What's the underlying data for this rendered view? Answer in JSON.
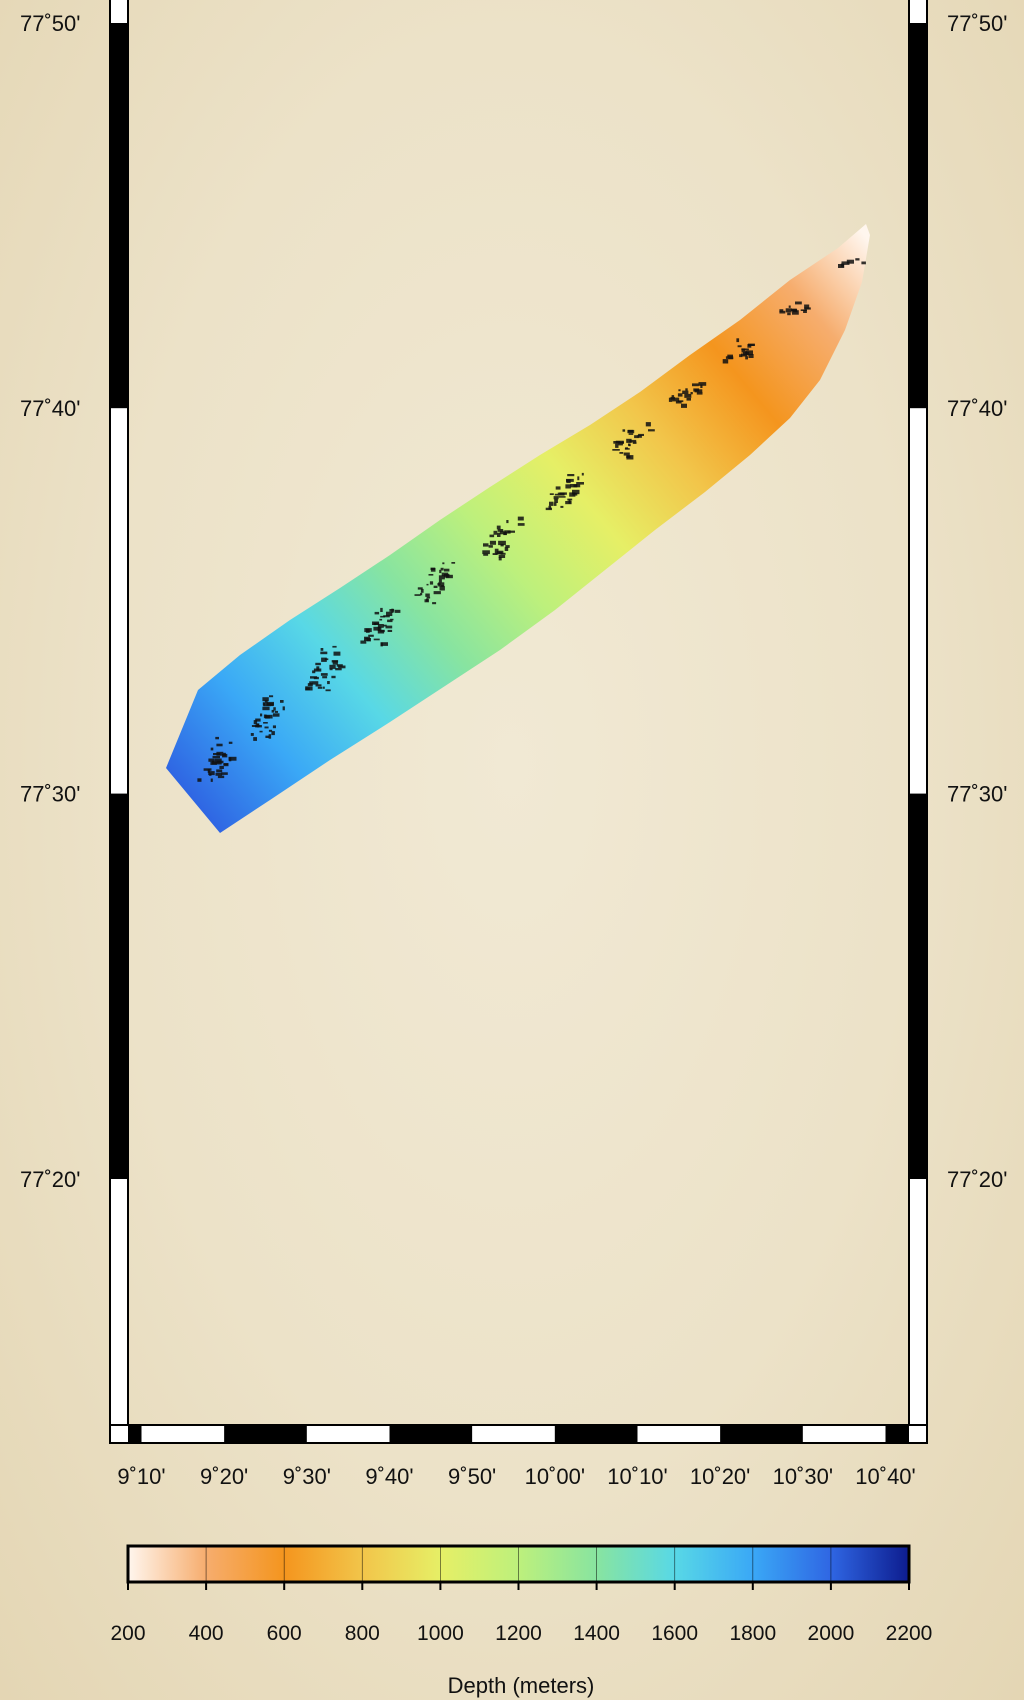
{
  "map": {
    "projection": "mercator",
    "lon_range": [
      "9°05'",
      "10°42'"
    ],
    "lat_range": [
      "77°13'",
      "77°50'"
    ],
    "frame_style": "fancy-alternating-black-white"
  },
  "axes": {
    "lat_ticks": [
      {
        "label": "77˚50'",
        "value": 77.8333
      },
      {
        "label": "77˚40'",
        "value": 77.6667
      },
      {
        "label": "77˚30'",
        "value": 77.5
      },
      {
        "label": "77˚20'",
        "value": 77.3333
      }
    ],
    "lon_ticks": [
      {
        "label": "9˚10'",
        "value": 9.1667
      },
      {
        "label": "9˚20'",
        "value": 9.3333
      },
      {
        "label": "9˚30'",
        "value": 9.5
      },
      {
        "label": "9˚40'",
        "value": 9.6667
      },
      {
        "label": "9˚50'",
        "value": 9.8333
      },
      {
        "label": "10˚00'",
        "value": 10.0
      },
      {
        "label": "10˚10'",
        "value": 10.1667
      },
      {
        "label": "10˚20'",
        "value": 10.3333
      },
      {
        "label": "10˚30'",
        "value": 10.5
      },
      {
        "label": "10˚40'",
        "value": 10.6667
      }
    ]
  },
  "swath": {
    "name": "bathymetry swath",
    "centerline": [
      {
        "lon": 10.53,
        "lat": 77.73,
        "depth": 250
      },
      {
        "lon": 10.2,
        "lat": 77.67,
        "depth": 750
      },
      {
        "lon": 9.9,
        "lat": 77.6,
        "depth": 1300
      },
      {
        "lon": 9.6,
        "lat": 77.55,
        "depth": 1650
      },
      {
        "lon": 9.2,
        "lat": 77.49,
        "depth": 1950
      }
    ]
  },
  "colorbar": {
    "title": "Depth (meters)",
    "min": 200,
    "max": 2200,
    "ticks": [
      "200",
      "400",
      "600",
      "800",
      "1000",
      "1200",
      "1400",
      "1600",
      "1800",
      "2000",
      "2200"
    ],
    "colors": [
      {
        "depth": 200,
        "color": "#fff6ee"
      },
      {
        "depth": 400,
        "color": "#f6ad6e"
      },
      {
        "depth": 600,
        "color": "#f4951e"
      },
      {
        "depth": 800,
        "color": "#f2c54a"
      },
      {
        "depth": 1000,
        "color": "#e6ef66"
      },
      {
        "depth": 1200,
        "color": "#bdf07c"
      },
      {
        "depth": 1400,
        "color": "#88e4a0"
      },
      {
        "depth": 1600,
        "color": "#58d8e6"
      },
      {
        "depth": 1800,
        "color": "#3aa8f6"
      },
      {
        "depth": 2000,
        "color": "#2f66e3"
      },
      {
        "depth": 2200,
        "color": "#0d1c8e"
      }
    ]
  }
}
